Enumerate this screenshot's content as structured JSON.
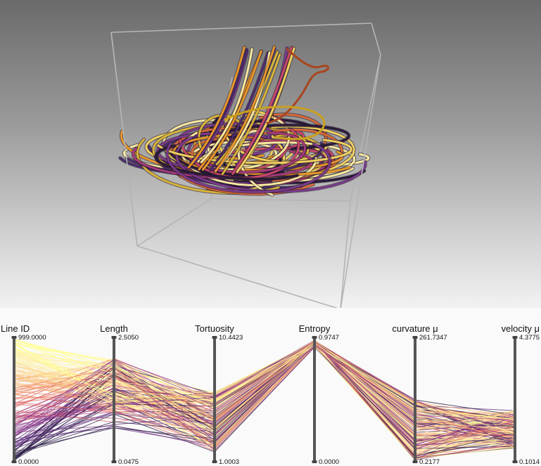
{
  "viewport": {
    "background_top": "#6a6a6a",
    "background_bottom": "#f2f2f2",
    "box_color": "#b4b4b4",
    "line_palette": [
      "#2a1a3a",
      "#4a2a6a",
      "#7a3a8a",
      "#a43a7a",
      "#c8486a",
      "#d86a3a",
      "#e8962a",
      "#d8b43a",
      "#f0d060",
      "#f8e8a0"
    ]
  },
  "pcp": {
    "axes": [
      {
        "label": "Line ID",
        "max": "999.0000",
        "min": "0.0000"
      },
      {
        "label": "Length",
        "max": "2.5050",
        "min": "0.0475"
      },
      {
        "label": "Tortuosity",
        "max": "10.4423",
        "min": "1.0003"
      },
      {
        "label": "Entropy",
        "max": "0.9747",
        "min": "0.0000"
      },
      {
        "label": "curvature μ",
        "max": "261.7347",
        "min": "0.2177"
      },
      {
        "label": "velocity μ",
        "max": "4.3775",
        "min": "0.1014"
      }
    ],
    "colormap": [
      "#2b1b45",
      "#5a2a7a",
      "#8a3a8a",
      "#b84a7a",
      "#e06a6a",
      "#f0906a",
      "#f8b878",
      "#fcd890",
      "#fef0a8",
      "#ffff90"
    ]
  }
}
